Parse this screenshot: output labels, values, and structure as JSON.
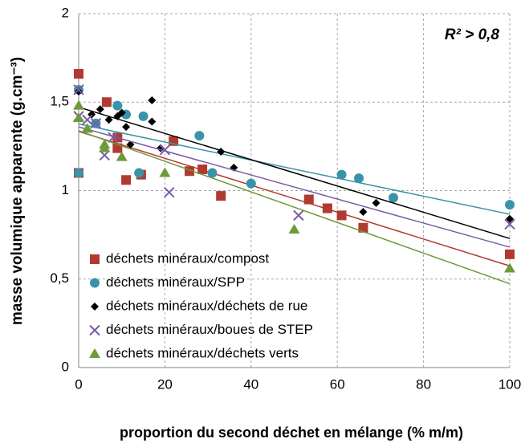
{
  "chart_data": {
    "type": "scatter",
    "xlabel": "proportion du second déchet en mélange (% m/m)",
    "ylabel": "masse volumique apparente (g.cm⁻³)",
    "annotation": "R² > 0,8",
    "xlim": [
      0,
      100
    ],
    "xticks": [
      0,
      20,
      40,
      60,
      80,
      100
    ],
    "ylim": [
      0,
      2
    ],
    "yticks": [
      0,
      {
        "value": 0.5,
        "label": "0,5"
      },
      1,
      {
        "value": 1.5,
        "label": "1,5"
      },
      2
    ],
    "grid": true,
    "trendline": true,
    "legend": "lower left",
    "series": [
      {
        "name": "déchets minéraux/compost",
        "color": "#b03a30",
        "marker": "square",
        "x": [
          0,
          0,
          6.5,
          9,
          9,
          11,
          14.5,
          22,
          25.7,
          28.7,
          33,
          53.4,
          57.7,
          61,
          66,
          100
        ],
        "values": [
          1.66,
          1.1,
          1.5,
          1.24,
          1.3,
          1.06,
          1.09,
          1.28,
          1.11,
          1.12,
          0.97,
          0.95,
          0.9,
          0.86,
          0.79,
          0.64
        ]
      },
      {
        "name": "déchets minéraux/SPP",
        "color": "#3a93a8",
        "marker": "circle",
        "x": [
          0,
          0,
          4,
          9,
          11,
          14,
          15,
          28,
          31,
          40,
          61,
          65,
          73,
          100
        ],
        "values": [
          1.57,
          1.1,
          1.38,
          1.48,
          1.43,
          1.1,
          1.42,
          1.31,
          1.1,
          1.04,
          1.09,
          1.07,
          0.96,
          0.92
        ]
      },
      {
        "name": "déchets minéraux/déchets de rue",
        "color": "#000000",
        "marker": "diamond",
        "x": [
          0,
          3,
          5,
          7,
          9,
          10,
          11,
          12,
          17,
          17,
          19,
          33,
          36,
          66,
          69,
          100
        ],
        "values": [
          1.56,
          1.43,
          1.46,
          1.4,
          1.42,
          1.44,
          1.36,
          1.26,
          1.51,
          1.39,
          1.24,
          1.22,
          1.13,
          0.88,
          0.93,
          0.84
        ]
      },
      {
        "name": "déchets minéraux/boues de STEP",
        "color": "#7b5ca6",
        "marker": "x",
        "x": [
          0,
          0,
          2,
          4,
          6,
          8,
          20,
          21,
          51,
          100
        ],
        "values": [
          1.57,
          1.42,
          1.4,
          1.38,
          1.2,
          1.3,
          1.23,
          0.99,
          0.86,
          0.81
        ]
      },
      {
        "name": "déchets minéraux/déchets verts",
        "color": "#6f9a3b",
        "marker": "triangle",
        "x": [
          0,
          0,
          2,
          6,
          6,
          10,
          20,
          50,
          100
        ],
        "values": [
          1.48,
          1.41,
          1.35,
          1.24,
          1.26,
          1.19,
          1.1,
          0.78,
          0.56
        ]
      }
    ]
  }
}
